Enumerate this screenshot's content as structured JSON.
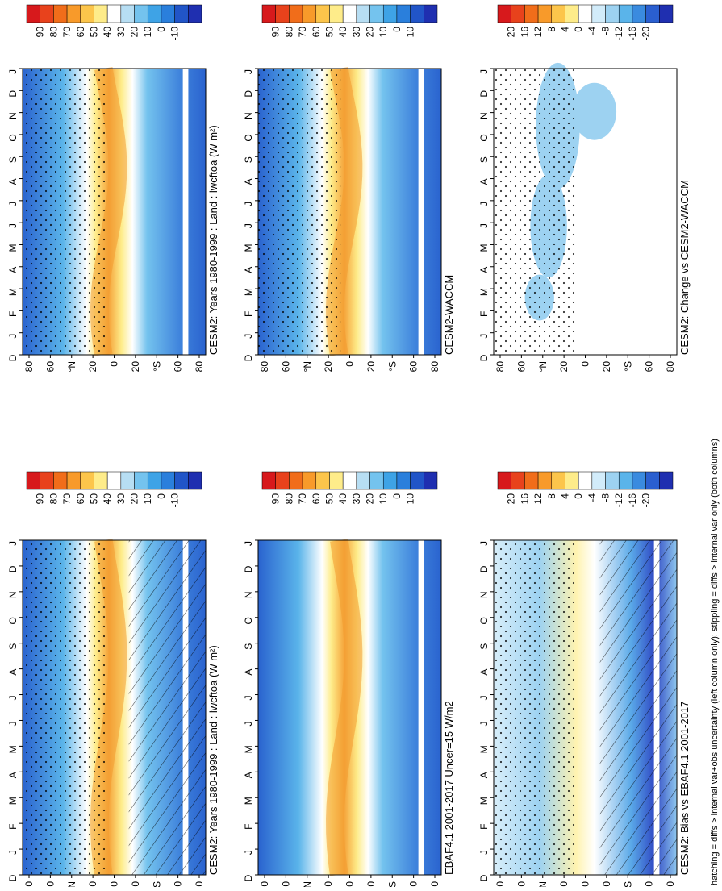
{
  "figure": {
    "footnote": "hatching = diffs > internal var+obs uncertainty (left column only); stippling = diffs > internal var only (both columns)",
    "month_ticks": [
      "D",
      "J",
      "F",
      "M",
      "A",
      "M",
      "J",
      "J",
      "A",
      "S",
      "O",
      "N",
      "D",
      "J"
    ],
    "lat_ticks": [
      "80",
      "60",
      "°N",
      "20",
      "0",
      "20",
      "°S",
      "60",
      "80"
    ]
  },
  "chart_data": [
    {
      "type": "heatmap",
      "title": "CESM2: Years 1980-1999 : Land : lwcftoa (W m²)",
      "colorbar": {
        "ticks": [
          "90",
          "80",
          "70",
          "60",
          "50",
          "40",
          "30",
          "20",
          "10",
          "0",
          "-10"
        ],
        "colors": [
          "#d7191c",
          "#e8421c",
          "#f16d1a",
          "#f89a2a",
          "#fcc54b",
          "#feec8a",
          "#ffffff",
          "#b7def3",
          "#74c3ee",
          "#3ea3e6",
          "#2a7fdc",
          "#2155c8",
          "#1f2fb0"
        ]
      },
      "xlabel": "",
      "ylabel": "",
      "x": [
        "J",
        "F",
        "M",
        "A",
        "M",
        "J",
        "J",
        "A",
        "S",
        "O",
        "N",
        "D"
      ],
      "y_range": [
        -90,
        90
      ],
      "hatching": true,
      "stippling": true
    },
    {
      "type": "heatmap",
      "title": "EBAF4.1 2001-2017 Uncer=15 W/m2",
      "colorbar": {
        "ticks": [
          "90",
          "80",
          "70",
          "60",
          "50",
          "40",
          "30",
          "20",
          "10",
          "0",
          "-10"
        ]
      },
      "x": [
        "J",
        "F",
        "M",
        "A",
        "M",
        "J",
        "J",
        "A",
        "S",
        "O",
        "N",
        "D"
      ],
      "y_range": [
        -90,
        90
      ]
    },
    {
      "type": "heatmap",
      "title": "CESM2: Bias vs EBAF4.1 2001-2017",
      "colorbar": {
        "ticks": [
          "20",
          "16",
          "12",
          "8",
          "4",
          "0",
          "-4",
          "-8",
          "-12",
          "-16",
          "-20"
        ]
      },
      "x": [
        "J",
        "F",
        "M",
        "A",
        "M",
        "J",
        "J",
        "A",
        "S",
        "O",
        "N",
        "D"
      ],
      "y_range": [
        -90,
        90
      ],
      "hatching": true,
      "stippling": true
    },
    {
      "type": "heatmap",
      "title": "CESM2: Years 1980-1999 : Land : lwcftoa (W m²)",
      "colorbar": {
        "ticks": [
          "90",
          "80",
          "70",
          "60",
          "50",
          "40",
          "30",
          "20",
          "10",
          "0",
          "-10"
        ]
      },
      "x": [
        "J",
        "F",
        "M",
        "A",
        "M",
        "J",
        "J",
        "A",
        "S",
        "O",
        "N",
        "D"
      ],
      "y_range": [
        -90,
        90
      ],
      "stippling": true
    },
    {
      "type": "heatmap",
      "title": "CESM2-WACCM",
      "colorbar": {
        "ticks": [
          "90",
          "80",
          "70",
          "60",
          "50",
          "40",
          "30",
          "20",
          "10",
          "0",
          "-10"
        ]
      },
      "x": [
        "J",
        "F",
        "M",
        "A",
        "M",
        "J",
        "J",
        "A",
        "S",
        "O",
        "N",
        "D"
      ],
      "y_range": [
        -90,
        90
      ],
      "stippling": true
    },
    {
      "type": "heatmap",
      "title": "CESM2: Change vs CESM2-WACCM",
      "colorbar": {
        "ticks": [
          "20",
          "16",
          "12",
          "8",
          "4",
          "0",
          "-4",
          "-8",
          "-12",
          "-16",
          "-20"
        ]
      },
      "x": [
        "J",
        "F",
        "M",
        "A",
        "M",
        "J",
        "J",
        "A",
        "S",
        "O",
        "N",
        "D"
      ],
      "y_range": [
        -90,
        90
      ],
      "stippling": true
    }
  ]
}
